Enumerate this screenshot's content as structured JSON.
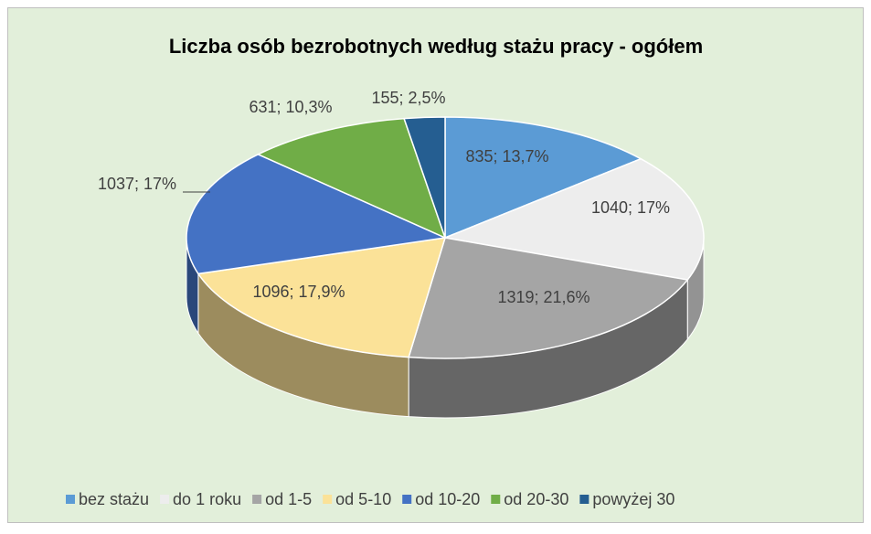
{
  "chart_data": {
    "type": "pie3d",
    "title": "Liczba osób bezrobotnych według stażu pracy - ogółem",
    "categories": [
      "bez stażu",
      "do 1 roku",
      "od 1-5",
      "od 5-10",
      "od 10-20",
      "od 20-30",
      "powyżej 30"
    ],
    "values": [
      835,
      1040,
      1319,
      1096,
      1037,
      631,
      155
    ],
    "value_labels": [
      "835; 13,7%",
      "1040; 17%",
      "1319; 21,6%",
      "1096; 17,9%",
      "1037; 17%",
      "631; 10,3%",
      "155; 2,5%"
    ],
    "colors": [
      "#5b9bd5",
      "#ededed",
      "#a5a5a5",
      "#fbe298",
      "#4472c4",
      "#70ad47",
      "#255e91"
    ],
    "legend": "bottom"
  }
}
